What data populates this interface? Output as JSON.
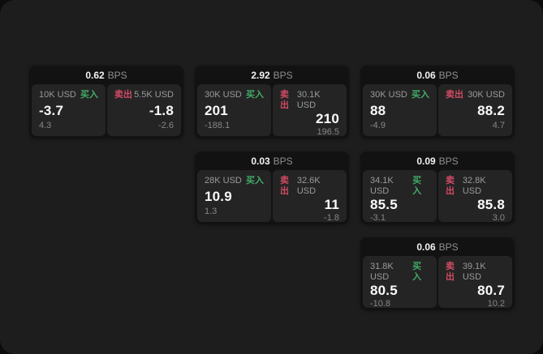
{
  "labels": {
    "bps_suffix": "BPS",
    "buy": "买入",
    "sell": "卖出"
  },
  "colors": {
    "buy_green": "#42ac68",
    "sell_red": "#cf4b64",
    "card_background": "#121212",
    "panel_background": "#242424",
    "page_background": "#1d1d1d"
  },
  "cards": [
    {
      "row": 1,
      "col": 1,
      "bps": "0.62",
      "buy": {
        "amount": "10K USD",
        "value": "-3.7",
        "sub": "4.3"
      },
      "sell": {
        "amount": "5.5K USD",
        "value": "-1.8",
        "sub": "-2.6"
      }
    },
    {
      "row": 1,
      "col": 2,
      "bps": "2.92",
      "buy": {
        "amount": "30K USD",
        "value": "201",
        "sub": "-188.1"
      },
      "sell": {
        "amount": "30.1K USD",
        "value": "210",
        "sub": "196.5"
      }
    },
    {
      "row": 1,
      "col": 3,
      "bps": "0.06",
      "buy": {
        "amount": "30K USD",
        "value": "88",
        "sub": "-4.9"
      },
      "sell": {
        "amount": "30K USD",
        "value": "88.2",
        "sub": "4.7"
      }
    },
    {
      "row": 2,
      "col": 2,
      "bps": "0.03",
      "buy": {
        "amount": "28K USD",
        "value": "10.9",
        "sub": "1.3"
      },
      "sell": {
        "amount": "32.6K USD",
        "value": "11",
        "sub": "-1.8"
      }
    },
    {
      "row": 2,
      "col": 3,
      "bps": "0.09",
      "buy": {
        "amount": "34.1K USD",
        "value": "85.5",
        "sub": "-3.1"
      },
      "sell": {
        "amount": "32.8K USD",
        "value": "85.8",
        "sub": "3.0"
      }
    },
    {
      "row": 3,
      "col": 3,
      "bps": "0.06",
      "buy": {
        "amount": "31.8K USD",
        "value": "80.5",
        "sub": "-10.8"
      },
      "sell": {
        "amount": "39.1K USD",
        "value": "80.7",
        "sub": "10.2"
      }
    }
  ]
}
